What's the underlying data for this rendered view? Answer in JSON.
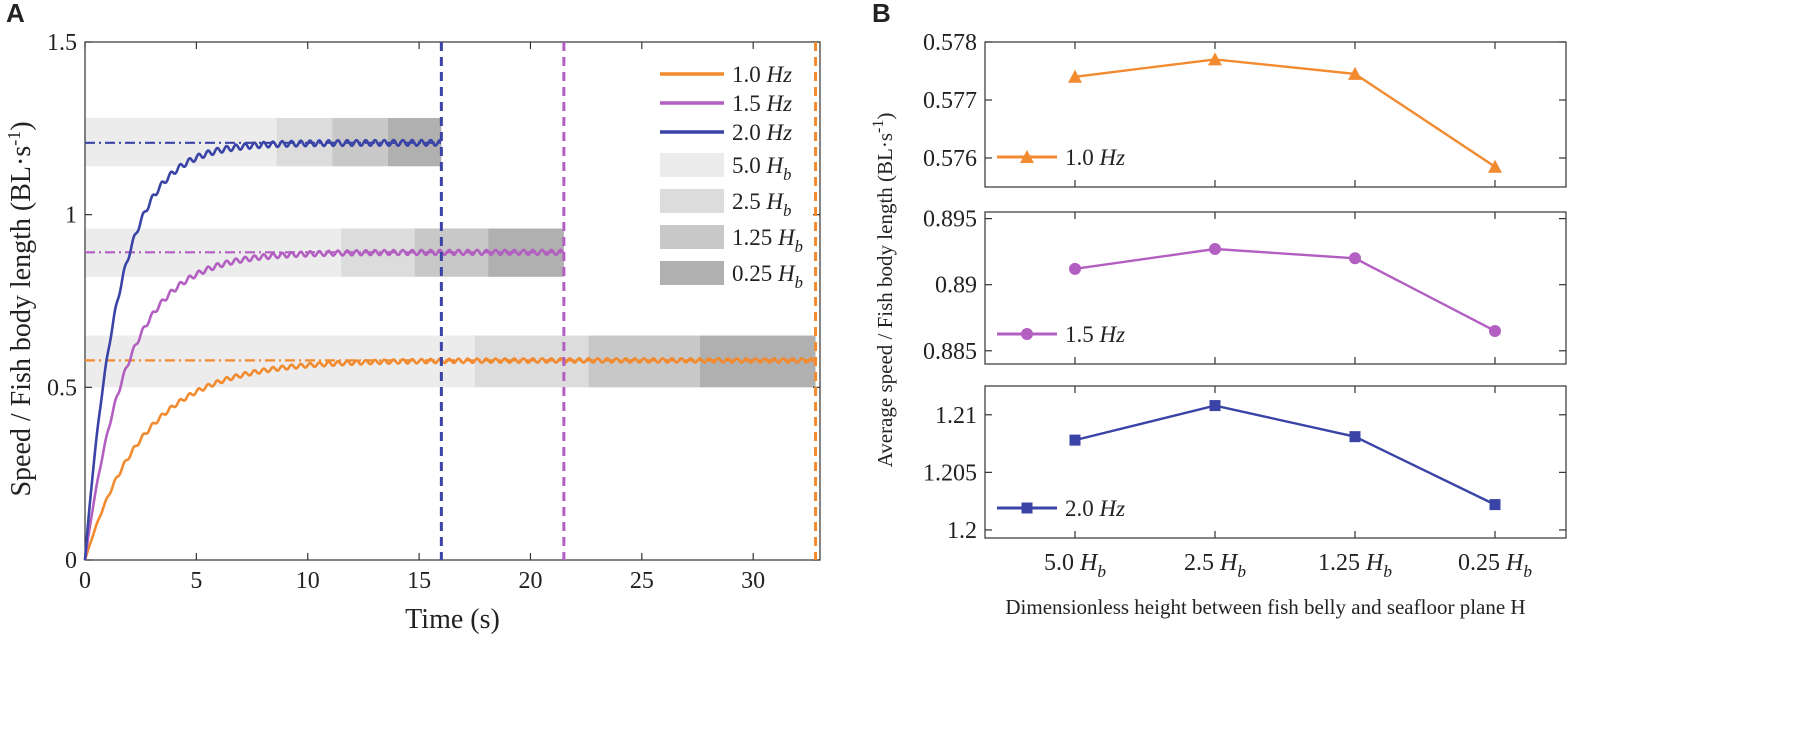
{
  "panels": {
    "a": "A",
    "b": "B"
  },
  "colors": {
    "f1": "#f28a2f",
    "f15": "#b25fc1",
    "f2": "#3a44a6"
  },
  "chart_data": [
    {
      "panel": "A",
      "type": "line",
      "xlabel": "Time (s)",
      "ylabel_main": "Speed / Fish body length (BL·s",
      "ylabel_sup": "-1",
      "ylabel_end": ")",
      "xlim": [
        0,
        33
      ],
      "ylim": [
        0,
        1.5
      ],
      "xticks": [
        0,
        5,
        10,
        15,
        20,
        25,
        30
      ],
      "yticks": [
        0,
        0.5,
        1,
        1.5
      ],
      "ytick_labels": [
        "0",
        "0.5",
        "1",
        "1.5"
      ],
      "series": [
        {
          "name": "1.0",
          "unit": "Hz",
          "color": "#f28a2f",
          "steady": 0.578,
          "tau": 2.7,
          "osc": 0.006,
          "t_end": 32.8
        },
        {
          "name": "1.5",
          "unit": "Hz",
          "color": "#b25fc1",
          "steady": 0.891,
          "tau": 1.9,
          "osc": 0.007,
          "t_end": 21.5
        },
        {
          "name": "2.0",
          "unit": "Hz",
          "color": "#3a44a6",
          "steady": 1.208,
          "tau": 1.5,
          "osc": 0.008,
          "t_end": 16.0
        }
      ],
      "height_bands": [
        {
          "label": "5.0",
          "sub": "b",
          "shade": "#ececec"
        },
        {
          "label": "2.5",
          "sub": "b",
          "shade": "#dcdcdc"
        },
        {
          "label": "1.25",
          "sub": "b",
          "shade": "#c8c8c8"
        },
        {
          "label": "0.25",
          "sub": "b",
          "shade": "#b0b0b0"
        }
      ],
      "band_segments": [
        {
          "series": "2.0",
          "y_range": [
            1.14,
            1.28
          ],
          "x_breaks": [
            0,
            8.6,
            11.1,
            13.6,
            16.0
          ]
        },
        {
          "series": "1.5",
          "y_range": [
            0.82,
            0.96
          ],
          "x_breaks": [
            0,
            11.5,
            14.8,
            18.1,
            21.5
          ]
        },
        {
          "series": "1.0",
          "y_range": [
            0.5,
            0.65
          ],
          "x_breaks": [
            0,
            17.5,
            22.6,
            27.6,
            32.8
          ]
        }
      ]
    },
    {
      "panel": "B",
      "type": "line",
      "xlabel": "Dimensionless  height  between fish belly and seafloor plane H",
      "ylabel_main": "Average speed / Fish body length (BL·s",
      "ylabel_sup": "-1",
      "ylabel_end": ")",
      "categories": [
        "5.0",
        "2.5",
        "1.25",
        "0.25"
      ],
      "category_sub": "b",
      "subplots": [
        {
          "name": "1.0",
          "unit": "Hz",
          "color": "#f28a2f",
          "marker": "triangle",
          "values": [
            0.5774,
            0.5777,
            0.57745,
            0.57585
          ],
          "ylim": [
            0.5755,
            0.578
          ],
          "yticks": [
            0.576,
            0.577,
            0.578
          ],
          "ytick_labels": [
            "0.576",
            "0.577",
            "0.578"
          ]
        },
        {
          "name": "1.5",
          "unit": "Hz",
          "color": "#b25fc1",
          "marker": "circle",
          "values": [
            0.8912,
            0.8927,
            0.892,
            0.8865
          ],
          "ylim": [
            0.884,
            0.8955
          ],
          "yticks": [
            0.885,
            0.89,
            0.895
          ],
          "ytick_labels": [
            "0.885",
            "0.89",
            "0.895"
          ]
        },
        {
          "name": "2.0",
          "unit": "Hz",
          "color": "#3a44a6",
          "marker": "square",
          "values": [
            1.2078,
            1.2108,
            1.2081,
            1.2022
          ],
          "ylim": [
            1.1993,
            1.2125
          ],
          "yticks": [
            1.2,
            1.205,
            1.21
          ],
          "ytick_labels": [
            "1.2",
            "1.205",
            "1.21"
          ]
        }
      ]
    }
  ]
}
